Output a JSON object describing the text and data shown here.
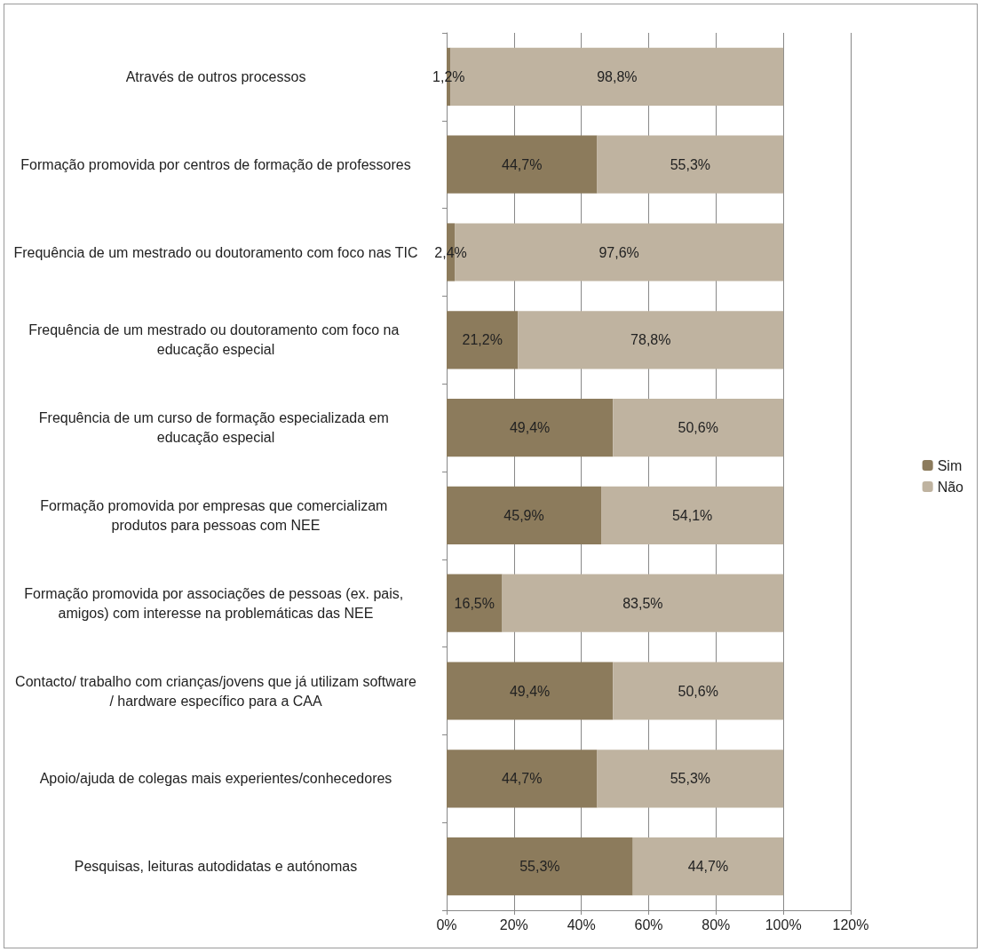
{
  "chart_data": {
    "type": "bar",
    "orientation": "horizontal",
    "stacked": true,
    "categories": [
      "Através de outros processos",
      "Formação promovida por centros de formação de professores",
      "Frequência de um mestrado ou doutoramento com foco nas TIC",
      "Frequência de um mestrado ou doutoramento com foco na educação especial",
      "Frequência de um curso de formação especializada em educação especial",
      "Formação promovida por empresas que comercializam produtos para pessoas com NEE",
      "Formação promovida por associações de pessoas (ex. pais, amigos) com interesse na problemáticas das NEE",
      "Contacto/ trabalho com crianças/jovens que já utilizam software/ hardware específico para a CAA",
      "Apoio/ajuda de colegas mais experientes/conhecedores",
      "Pesquisas, leituras autodidatas e autónomas"
    ],
    "series": [
      {
        "name": "Sim",
        "color": "#8c7b5c",
        "values": [
          1.2,
          44.7,
          2.4,
          21.2,
          49.4,
          45.9,
          16.5,
          49.4,
          44.7,
          55.3
        ],
        "value_labels": [
          "1,2%",
          "44,7%",
          "2,4%",
          "21,2%",
          "49,4%",
          "45,9%",
          "16,5%",
          "49,4%",
          "44,7%",
          "55,3%"
        ]
      },
      {
        "name": "Não",
        "color": "#bfb3a0",
        "values": [
          98.8,
          55.3,
          97.6,
          78.8,
          50.6,
          54.1,
          83.5,
          50.6,
          55.3,
          44.7
        ],
        "value_labels": [
          "98,8%",
          "55,3%",
          "97,6%",
          "78,8%",
          "50,6%",
          "54,1%",
          "83,5%",
          "50,6%",
          "55,3%",
          "44,7%"
        ]
      }
    ],
    "xlim": [
      0,
      120
    ],
    "xticks": [
      {
        "value": 0,
        "label": "0%"
      },
      {
        "value": 20,
        "label": "20%"
      },
      {
        "value": 40,
        "label": "40%"
      },
      {
        "value": 60,
        "label": "60%"
      },
      {
        "value": 80,
        "label": "80%"
      },
      {
        "value": 100,
        "label": "100%"
      },
      {
        "value": 120,
        "label": "120%"
      }
    ],
    "grid": "x",
    "legend": "right"
  }
}
